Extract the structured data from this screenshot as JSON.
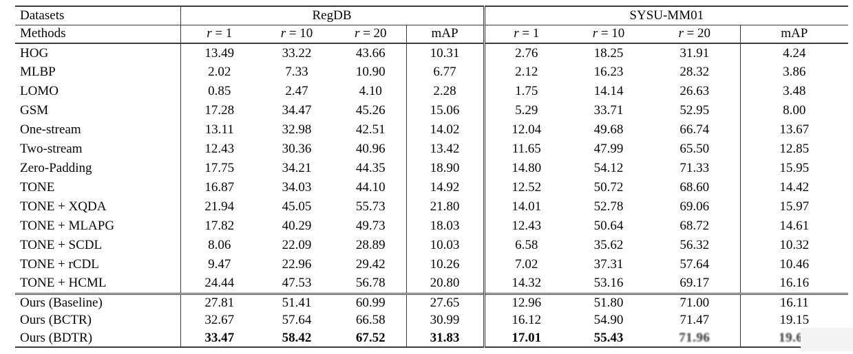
{
  "header": {
    "datasets_label": "Datasets",
    "methods_label": "Methods",
    "group1": "RegDB",
    "group2": "SYSU-MM01",
    "subcols": [
      {
        "sym": "r",
        "rest": " = 1"
      },
      {
        "sym": "r",
        "rest": " = 10"
      },
      {
        "sym": "r",
        "rest": " = 20"
      },
      {
        "sym": "",
        "rest": "mAP"
      }
    ]
  },
  "rows": [
    {
      "section": "main",
      "bold_values": false,
      "cells": [
        "HOG",
        "13.49",
        "33.22",
        "43.66",
        "10.31",
        "2.76",
        "18.25",
        "31.91",
        "4.24"
      ]
    },
    {
      "section": "main",
      "bold_values": false,
      "cells": [
        "MLBP",
        "2.02",
        "7.33",
        "10.90",
        "6.77",
        "2.12",
        "16.23",
        "28.32",
        "3.86"
      ]
    },
    {
      "section": "main",
      "bold_values": false,
      "cells": [
        "LOMO",
        "0.85",
        "2.47",
        "4.10",
        "2.28",
        "1.75",
        "14.14",
        "26.63",
        "3.48"
      ]
    },
    {
      "section": "main",
      "bold_values": false,
      "cells": [
        "GSM",
        "17.28",
        "34.47",
        "45.26",
        "15.06",
        "5.29",
        "33.71",
        "52.95",
        "8.00"
      ]
    },
    {
      "section": "main",
      "bold_values": false,
      "cells": [
        "One-stream",
        "13.11",
        "32.98",
        "42.51",
        "14.02",
        "12.04",
        "49.68",
        "66.74",
        "13.67"
      ]
    },
    {
      "section": "main",
      "bold_values": false,
      "cells": [
        "Two-stream",
        "12.43",
        "30.36",
        "40.96",
        "13.42",
        "11.65",
        "47.99",
        "65.50",
        "12.85"
      ]
    },
    {
      "section": "main",
      "bold_values": false,
      "cells": [
        "Zero-Padding",
        "17.75",
        "34.21",
        "44.35",
        "18.90",
        "14.80",
        "54.12",
        "71.33",
        "15.95"
      ]
    },
    {
      "section": "main",
      "bold_values": false,
      "cells": [
        "TONE",
        "16.87",
        "34.03",
        "44.10",
        "14.92",
        "12.52",
        "50.72",
        "68.60",
        "14.42"
      ]
    },
    {
      "section": "main",
      "bold_values": false,
      "cells": [
        "TONE + XQDA",
        "21.94",
        "45.05",
        "55.73",
        "21.80",
        "14.01",
        "52.78",
        "69.06",
        "15.97"
      ]
    },
    {
      "section": "main",
      "bold_values": false,
      "cells": [
        "TONE + MLAPG",
        "17.82",
        "40.29",
        "49.73",
        "18.03",
        "12.43",
        "50.64",
        "68.72",
        "14.61"
      ]
    },
    {
      "section": "main",
      "bold_values": false,
      "cells": [
        "TONE + SCDL",
        "8.06",
        "22.09",
        "28.89",
        "10.03",
        "6.58",
        "35.62",
        "56.32",
        "10.32"
      ]
    },
    {
      "section": "main",
      "bold_values": false,
      "cells": [
        "TONE + rCDL",
        "9.47",
        "22.96",
        "29.42",
        "10.26",
        "7.02",
        "37.31",
        "57.64",
        "10.46"
      ]
    },
    {
      "section": "main",
      "bold_values": false,
      "cells": [
        "TONE + HCML",
        "24.44",
        "47.53",
        "56.78",
        "20.80",
        "14.32",
        "53.16",
        "69.17",
        "16.16"
      ]
    },
    {
      "section": "ours",
      "bold_values": false,
      "cells": [
        "Ours (Baseline)",
        "27.81",
        "51.41",
        "60.99",
        "27.65",
        "12.96",
        "51.80",
        "71.00",
        "16.11"
      ]
    },
    {
      "section": "ours",
      "bold_values": false,
      "cells": [
        "Ours (BCTR)",
        "32.67",
        "57.64",
        "66.58",
        "30.99",
        "16.12",
        "54.90",
        "71.47",
        "19.15"
      ]
    },
    {
      "section": "ours",
      "bold_values": true,
      "smudged": [
        7,
        8
      ],
      "cells": [
        "Ours (BDTR)",
        "33.47",
        "58.42",
        "67.52",
        "31.83",
        "17.01",
        "55.43",
        "71.96",
        "19.66"
      ]
    }
  ]
}
